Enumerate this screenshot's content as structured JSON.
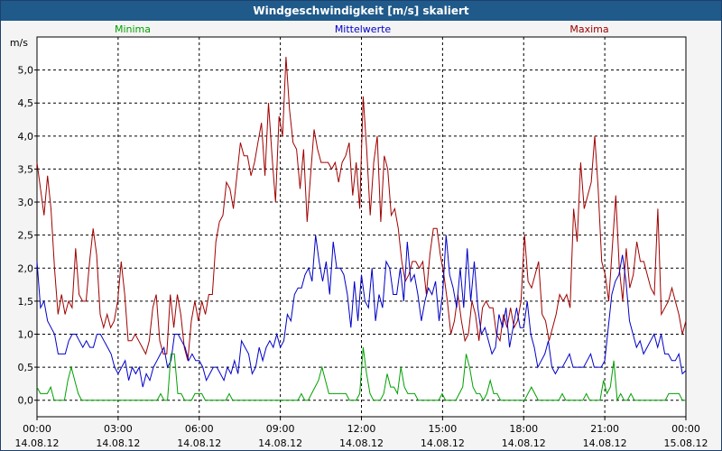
{
  "window": {
    "title": "Windgeschwindigkeit [m/s] skaliert"
  },
  "chart_data": {
    "type": "line",
    "title": "Windgeschwindigkeit [m/s] skaliert",
    "ylabel": "m/s",
    "xlabel": "",
    "ylim": [
      -0.25,
      5.5
    ],
    "xlim": [
      0,
      24
    ],
    "y_ticks": [
      "0,0",
      "0,5",
      "1,0",
      "1,5",
      "2,0",
      "2,5",
      "3,0",
      "3,5",
      "4,0",
      "4,5",
      "5,0"
    ],
    "x_ticks": [
      {
        "time": "00:00",
        "date": "14.08.12"
      },
      {
        "time": "03:00",
        "date": "14.08.12"
      },
      {
        "time": "06:00",
        "date": "14.08.12"
      },
      {
        "time": "09:00",
        "date": "14.08.12"
      },
      {
        "time": "12:00",
        "date": "14.08.12"
      },
      {
        "time": "15:00",
        "date": "14.08.12"
      },
      {
        "time": "18:00",
        "date": "14.08.12"
      },
      {
        "time": "21:00",
        "date": "14.08.12"
      },
      {
        "time": "00:00",
        "date": "15.08.12"
      }
    ],
    "grid": true,
    "legend_placement": "top",
    "sample_interval_hours": 0.1667,
    "series": [
      {
        "name": "Minima",
        "color": "#00a000",
        "values": [
          0.2,
          0.1,
          0.1,
          0.1,
          0.2,
          0,
          0,
          0,
          0,
          0.3,
          0.5,
          0.3,
          0.1,
          0,
          0,
          0,
          0,
          0,
          0,
          0,
          0,
          0,
          0,
          0,
          0,
          0,
          0,
          0,
          0,
          0,
          0,
          0,
          0,
          0,
          0,
          0,
          0.1,
          0,
          0,
          0.7,
          0.7,
          0.1,
          0.1,
          0,
          0,
          0,
          0.1,
          0.1,
          0.1,
          0,
          0,
          0,
          0,
          0,
          0,
          0,
          0.1,
          0,
          0,
          0,
          0,
          0,
          0,
          0,
          0,
          0,
          0,
          0,
          0,
          0,
          0,
          0,
          0,
          0,
          0,
          0,
          0,
          0.1,
          0,
          0,
          0.1,
          0.2,
          0.3,
          0.5,
          0.3,
          0.1,
          0.1,
          0.1,
          0.1,
          0.1,
          0.1,
          0,
          0,
          0,
          0.1,
          0.8,
          0.4,
          0.1,
          0,
          0,
          0,
          0.1,
          0.4,
          0.2,
          0.2,
          0.1,
          0.5,
          0.2,
          0.1,
          0.1,
          0.1,
          0,
          0,
          0,
          0,
          0,
          0,
          0,
          0.1,
          0,
          0,
          0,
          0,
          0.1,
          0.2,
          0.7,
          0.5,
          0.2,
          0.1,
          0.1,
          0,
          0.1,
          0.3,
          0.1,
          0.1,
          0,
          0,
          0,
          0,
          0,
          0,
          0,
          0,
          0.1,
          0.2,
          0.1,
          0,
          0,
          0,
          0,
          0,
          0,
          0,
          0.1,
          0,
          0,
          0,
          0,
          0,
          0,
          0.1,
          0,
          0,
          0,
          0,
          0.3,
          0.1,
          0.2,
          0.6,
          0,
          0.1,
          0,
          0,
          0.1,
          0,
          0,
          0,
          0,
          0,
          0,
          0,
          0,
          0,
          0,
          0.1,
          0.1,
          0.1,
          0.1,
          0,
          0
        ],
        "note": ""
      }
    ]
  }
}
